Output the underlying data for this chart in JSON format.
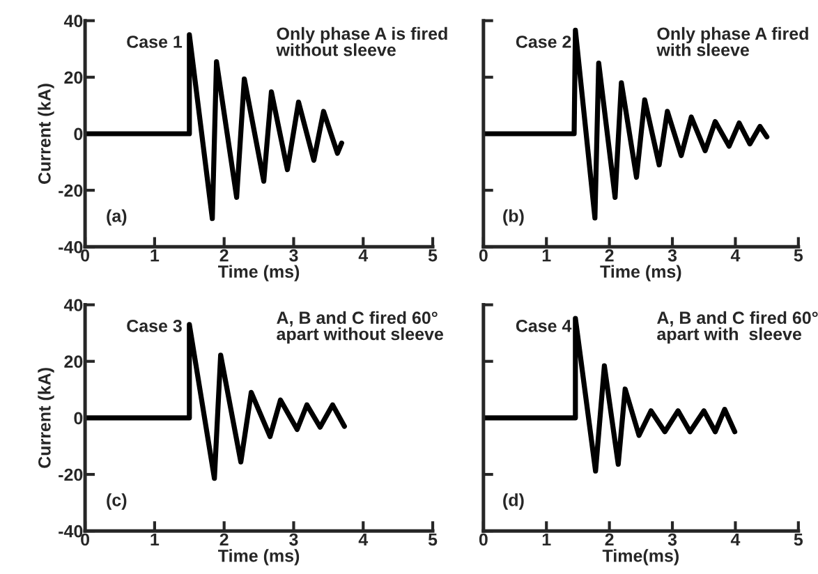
{
  "chart_data": [
    {
      "type": "line",
      "xlabel": "Time (ms)",
      "ylabel": "Current (kA)",
      "xlim": [
        0,
        5
      ],
      "ylim": [
        -40,
        40
      ],
      "xticks": [
        0,
        1,
        2,
        3,
        4,
        5
      ],
      "yticks": [
        -40,
        -20,
        0,
        20,
        40
      ],
      "grid": false,
      "legend": false,
      "annotations": [
        "Case 1",
        "Only phase A is fired\nwithout sleeve",
        "(a)"
      ],
      "series": [
        {
          "color": "#000000",
          "x": [
            0,
            1.5,
            1.5,
            1.83,
            1.89,
            2.18,
            2.29,
            2.57,
            2.68,
            2.91,
            3.07,
            3.29,
            3.43,
            3.63,
            3.69
          ],
          "values": [
            0,
            0,
            35,
            -30,
            25.5,
            -22.5,
            19.4,
            -16.8,
            14.8,
            -12.7,
            11.2,
            -9.4,
            7.9,
            -6.9,
            -3.3
          ]
        }
      ]
    },
    {
      "type": "line",
      "xlabel": "Time (ms)",
      "xlim": [
        0,
        5
      ],
      "ylim": [
        -40,
        40
      ],
      "xticks": [
        0,
        1,
        2,
        3,
        4,
        5
      ],
      "yticks": [
        -40,
        -20,
        0,
        20,
        40
      ],
      "grid": false,
      "legend": false,
      "tick_labels": "x",
      "annotations": [
        "Case 2",
        "Only phase A fired\nwith sleeve",
        "(b)"
      ],
      "series": [
        {
          "color": "#000000",
          "x": [
            0,
            1.44,
            1.46,
            1.77,
            1.83,
            2.09,
            2.19,
            2.43,
            2.56,
            2.79,
            2.92,
            3.14,
            3.3,
            3.52,
            3.68,
            3.9,
            4.06,
            4.23,
            4.39,
            4.5
          ],
          "values": [
            0,
            0,
            36.6,
            -29.8,
            25,
            -22.5,
            18,
            -15.4,
            12,
            -11,
            7.9,
            -7.7,
            5.9,
            -6,
            4.3,
            -4.4,
            3.8,
            -3.6,
            2.6,
            -1.1
          ]
        }
      ]
    },
    {
      "type": "line",
      "xlabel": "Time (ms)",
      "ylabel": "Current (kA)",
      "xlim": [
        0,
        5
      ],
      "ylim": [
        -40,
        40
      ],
      "xticks": [
        0,
        1,
        2,
        3,
        4,
        5
      ],
      "yticks": [
        -40,
        -20,
        0,
        20,
        40
      ],
      "grid": false,
      "legend": false,
      "annotations": [
        "Case 3",
        "A, B and C fired 60°\napart without sleeve",
        "(c)"
      ],
      "series": [
        {
          "color": "#000000",
          "x": [
            0,
            1.5,
            1.5,
            1.86,
            1.95,
            2.24,
            2.39,
            2.66,
            2.81,
            3.05,
            3.19,
            3.38,
            3.56,
            3.73
          ],
          "values": [
            0,
            0,
            33,
            -21.4,
            22.2,
            -15.6,
            9,
            -6.6,
            6.3,
            -4.1,
            4.6,
            -3.3,
            4.6,
            -3
          ]
        }
      ]
    },
    {
      "type": "line",
      "xlabel": "Time(ms)",
      "xlim": [
        0,
        5
      ],
      "ylim": [
        -40,
        40
      ],
      "xticks": [
        0,
        1,
        2,
        3,
        4,
        5
      ],
      "yticks": [
        -40,
        -20,
        0,
        20,
        40
      ],
      "grid": false,
      "legend": false,
      "tick_labels": "x",
      "annotations": [
        "Case 4",
        "A, B and C fired 60°\napart with  sleeve",
        "(d)"
      ],
      "series": [
        {
          "color": "#000000",
          "x": [
            0,
            1.46,
            1.46,
            1.78,
            1.92,
            2.14,
            2.25,
            2.47,
            2.66,
            2.88,
            3.09,
            3.28,
            3.5,
            3.68,
            3.83,
            3.99
          ],
          "values": [
            0,
            0,
            35.2,
            -18.8,
            18.4,
            -16.4,
            10.2,
            -6.2,
            2.5,
            -4.9,
            2.5,
            -4.9,
            2.5,
            -4.9,
            3,
            -4.9
          ]
        }
      ]
    }
  ]
}
